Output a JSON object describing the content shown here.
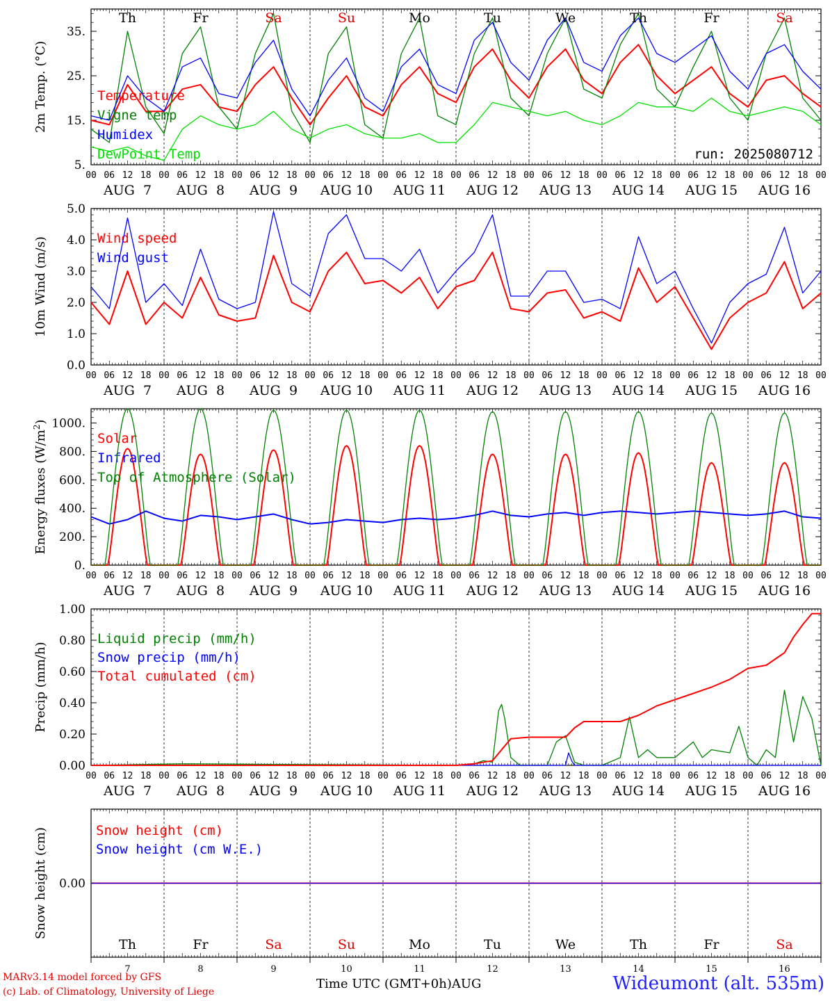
{
  "footer": {
    "model": "MARv3.14 model forced by GFS",
    "copyright": "(c) Lab. of Climatology, University of Liege",
    "xlabel": "Time UTC (GMT+0h)",
    "month": "AUG",
    "station": "Wideumont (alt. 535m)"
  },
  "run_label": "run: 2025080712",
  "colors": {
    "red": "#ff0000",
    "green": "#008000",
    "blue": "#0000ff",
    "lightgreen": "#00e000",
    "magenta": "#e000e0"
  },
  "days": [
    {
      "dow": "Th",
      "date": "7",
      "weekend": false
    },
    {
      "dow": "Fr",
      "date": "8",
      "weekend": false
    },
    {
      "dow": "Sa",
      "date": "9",
      "weekend": true
    },
    {
      "dow": "Su",
      "date": "10",
      "weekend": true
    },
    {
      "dow": "Mo",
      "date": "11",
      "weekend": false
    },
    {
      "dow": "Tu",
      "date": "12",
      "weekend": false
    },
    {
      "dow": "We",
      "date": "13",
      "weekend": false
    },
    {
      "dow": "Th",
      "date": "14",
      "weekend": false
    },
    {
      "dow": "Fr",
      "date": "15",
      "weekend": false
    },
    {
      "dow": "Sa",
      "date": "16",
      "weekend": true
    }
  ],
  "hour_ticks": [
    "00",
    "06",
    "12",
    "18"
  ],
  "date_labels": [
    "AUG  7",
    "AUG  8",
    "AUG  9",
    "AUG 10",
    "AUG 11",
    "AUG 12",
    "AUG 13",
    "AUG 14",
    "AUG 15",
    "AUG 16"
  ],
  "chart_data": [
    {
      "type": "line",
      "id": "temp",
      "ylabel": "2m Temp. (°C)",
      "ylim": [
        5,
        40
      ],
      "yticks": [
        5,
        15,
        25,
        35
      ],
      "ytick_labels": [
        "5.",
        "15.",
        "25.",
        "35."
      ],
      "x_unit": "hours since AUG 7 00 UTC",
      "series": [
        {
          "name": "Temperature",
          "color": "red",
          "x": [
            0,
            6,
            12,
            18,
            24,
            30,
            36,
            42,
            48,
            54,
            60,
            66,
            72,
            78,
            84,
            90,
            96,
            102,
            108,
            114,
            120,
            126,
            132,
            138,
            144,
            150,
            156,
            162,
            168,
            174,
            180,
            186,
            192,
            198,
            204,
            210,
            216,
            222,
            228,
            234,
            240
          ],
          "values": [
            15,
            14,
            23,
            17,
            17,
            22,
            23,
            18,
            17,
            23,
            27,
            20,
            14,
            20,
            25,
            18,
            16,
            23,
            27,
            21,
            19,
            27,
            31,
            24,
            20,
            27,
            31,
            24,
            21,
            28,
            32,
            25,
            21,
            24,
            27,
            21,
            18,
            24,
            25,
            21,
            18
          ]
        },
        {
          "name": "Vigne temp",
          "color": "green",
          "x": [
            0,
            6,
            12,
            18,
            24,
            30,
            36,
            42,
            48,
            54,
            60,
            66,
            72,
            78,
            84,
            90,
            96,
            102,
            108,
            114,
            120,
            126,
            132,
            138,
            144,
            150,
            156,
            162,
            168,
            174,
            180,
            186,
            192,
            198,
            204,
            210,
            216,
            222,
            228,
            234,
            240
          ],
          "values": [
            13,
            10,
            35,
            18,
            12,
            30,
            36,
            18,
            13,
            30,
            39,
            17,
            10,
            30,
            36,
            14,
            11,
            30,
            38,
            16,
            14,
            30,
            38,
            20,
            16,
            30,
            38,
            22,
            20,
            32,
            39,
            22,
            18,
            27,
            35,
            20,
            15,
            30,
            38,
            20,
            15
          ]
        },
        {
          "name": "Humidex",
          "color": "blue",
          "x": [
            0,
            6,
            12,
            18,
            24,
            30,
            36,
            42,
            48,
            54,
            60,
            66,
            72,
            78,
            84,
            90,
            96,
            102,
            108,
            114,
            120,
            126,
            132,
            138,
            144,
            150,
            156,
            162,
            168,
            174,
            180,
            186,
            192,
            198,
            204,
            210,
            216,
            222,
            228,
            234,
            240
          ],
          "values": [
            16,
            15,
            25,
            20,
            17,
            27,
            29,
            21,
            20,
            28,
            33,
            22,
            16,
            24,
            29,
            20,
            17,
            27,
            31,
            23,
            21,
            33,
            37,
            28,
            24,
            33,
            38,
            28,
            26,
            34,
            38,
            30,
            28,
            31,
            34,
            26,
            22,
            30,
            32,
            26,
            22
          ]
        },
        {
          "name": "DewPoint Temp",
          "color": "lightgreen",
          "x": [
            0,
            6,
            12,
            18,
            24,
            30,
            36,
            42,
            48,
            54,
            60,
            66,
            72,
            78,
            84,
            90,
            96,
            102,
            108,
            114,
            120,
            126,
            132,
            138,
            144,
            150,
            156,
            162,
            168,
            174,
            180,
            186,
            192,
            198,
            204,
            210,
            216,
            222,
            228,
            234,
            240
          ],
          "values": [
            9,
            8,
            9,
            7,
            6,
            13,
            16,
            14,
            13,
            14,
            17,
            13,
            11,
            13,
            14,
            12,
            11,
            11,
            12,
            10,
            10,
            14,
            19,
            18,
            17,
            16,
            17,
            15,
            14,
            16,
            19,
            18,
            18,
            17,
            20,
            17,
            16,
            17,
            18,
            17,
            14
          ]
        }
      ]
    },
    {
      "type": "line",
      "id": "wind",
      "ylabel": "10m Wind (m/s)",
      "ylim": [
        0,
        5
      ],
      "yticks": [
        0,
        1,
        2,
        3,
        4,
        5
      ],
      "ytick_labels": [
        "0.0",
        "1.0",
        "2.0",
        "3.0",
        "4.0",
        "5.0"
      ],
      "x_unit": "hours since AUG 7 00 UTC",
      "series": [
        {
          "name": "Wind speed",
          "color": "red",
          "x": [
            0,
            6,
            12,
            18,
            24,
            30,
            36,
            42,
            48,
            54,
            60,
            66,
            72,
            78,
            84,
            90,
            96,
            102,
            108,
            114,
            120,
            126,
            132,
            138,
            144,
            150,
            156,
            162,
            168,
            174,
            180,
            186,
            192,
            198,
            204,
            210,
            216,
            222,
            228,
            234,
            240
          ],
          "values": [
            2.0,
            1.3,
            3.0,
            1.3,
            2.0,
            1.5,
            2.8,
            1.6,
            1.4,
            1.5,
            3.5,
            2.0,
            1.7,
            3.0,
            3.6,
            2.6,
            2.7,
            2.3,
            2.8,
            1.8,
            2.5,
            2.7,
            3.6,
            1.8,
            1.7,
            2.3,
            2.4,
            1.5,
            1.7,
            1.4,
            3.1,
            2.0,
            2.5,
            1.5,
            0.5,
            1.5,
            2.0,
            2.3,
            3.3,
            1.8,
            2.3
          ]
        },
        {
          "name": "Wind gust",
          "color": "blue",
          "x": [
            0,
            6,
            12,
            18,
            24,
            30,
            36,
            42,
            48,
            54,
            60,
            66,
            72,
            78,
            84,
            90,
            96,
            102,
            108,
            114,
            120,
            126,
            132,
            138,
            144,
            150,
            156,
            162,
            168,
            174,
            180,
            186,
            192,
            198,
            204,
            210,
            216,
            222,
            228,
            234,
            240
          ],
          "values": [
            2.5,
            1.8,
            4.7,
            2.0,
            2.6,
            1.9,
            3.7,
            2.1,
            1.8,
            2.0,
            4.9,
            2.6,
            2.2,
            4.2,
            4.8,
            3.4,
            3.4,
            3.0,
            3.7,
            2.3,
            3.0,
            3.6,
            4.8,
            2.2,
            2.2,
            3.0,
            3.0,
            2.0,
            2.1,
            1.8,
            4.1,
            2.6,
            3.0,
            1.8,
            0.7,
            2.0,
            2.6,
            2.9,
            4.4,
            2.3,
            3.0
          ]
        }
      ]
    },
    {
      "type": "line",
      "id": "energy",
      "ylabel": "Energy fluxes (W/m2)",
      "ylim": [
        0,
        1100
      ],
      "yticks": [
        0,
        200,
        400,
        600,
        800,
        1000
      ],
      "ytick_labels": [
        "0.",
        "200.",
        "400.",
        "600.",
        "800.",
        "1000."
      ],
      "x_unit": "hours since AUG 7 00 UTC",
      "peak_hour": 12,
      "series": [
        {
          "name": "Solar",
          "color": "red",
          "daily_peaks": [
            820,
            780,
            810,
            840,
            840,
            780,
            780,
            790,
            720,
            720
          ]
        },
        {
          "name": "Infrared",
          "color": "blue",
          "x": [
            0,
            6,
            12,
            18,
            24,
            30,
            36,
            42,
            48,
            54,
            60,
            66,
            72,
            78,
            84,
            90,
            96,
            102,
            108,
            114,
            120,
            126,
            132,
            138,
            144,
            150,
            156,
            162,
            168,
            174,
            180,
            186,
            192,
            198,
            204,
            210,
            216,
            222,
            228,
            234,
            240
          ],
          "values": [
            340,
            290,
            320,
            380,
            330,
            310,
            350,
            340,
            320,
            340,
            360,
            320,
            290,
            300,
            320,
            310,
            300,
            320,
            330,
            320,
            330,
            350,
            380,
            350,
            340,
            360,
            370,
            350,
            370,
            380,
            370,
            360,
            370,
            380,
            370,
            360,
            350,
            360,
            380,
            340,
            330
          ]
        },
        {
          "name": "Top of Atmosphere (Solar)",
          "color": "green",
          "daily_peaks": [
            1100,
            1100,
            1090,
            1090,
            1090,
            1080,
            1080,
            1080,
            1070,
            1070
          ]
        }
      ]
    },
    {
      "type": "line",
      "id": "precip",
      "ylabel": "Precip (mm/h)",
      "ylim": [
        0,
        1
      ],
      "yticks": [
        0,
        0.2,
        0.4,
        0.6,
        0.8,
        1.0
      ],
      "ytick_labels": [
        "0.00",
        "0.20",
        "0.40",
        "0.60",
        "0.80",
        "1.00"
      ],
      "x_unit": "hours since AUG 7 00 UTC",
      "series": [
        {
          "name": "Liquid precip (mm/h)",
          "color": "green",
          "x": [
            0,
            30,
            120,
            126,
            129,
            132,
            134,
            135,
            136,
            138,
            141,
            144,
            150,
            153,
            156,
            159,
            162,
            168,
            174,
            177,
            180,
            183,
            186,
            192,
            198,
            201,
            204,
            210,
            213,
            216,
            219,
            222,
            225,
            228,
            231,
            234,
            237,
            240
          ],
          "values": [
            0,
            0.01,
            0,
            0.01,
            0.03,
            0.02,
            0.35,
            0.39,
            0.3,
            0.05,
            0,
            0,
            0,
            0.15,
            0.19,
            0.02,
            0,
            0,
            0.05,
            0.31,
            0.05,
            0.1,
            0.05,
            0.05,
            0.15,
            0.05,
            0.1,
            0.08,
            0.25,
            0.05,
            0,
            0.1,
            0.05,
            0.48,
            0.15,
            0.44,
            0.3,
            0
          ]
        },
        {
          "name": "Snow precip (mm/h)",
          "color": "blue",
          "x": [
            0,
            156,
            157,
            158,
            159,
            240
          ],
          "values": [
            0,
            0,
            0.08,
            0.03,
            0,
            0
          ]
        },
        {
          "name": "Total cumulated (cm)",
          "color": "red",
          "x": [
            0,
            120,
            126,
            132,
            135,
            138,
            144,
            150,
            156,
            159,
            162,
            168,
            174,
            180,
            186,
            192,
            198,
            204,
            210,
            216,
            222,
            228,
            231,
            234,
            237,
            240
          ],
          "values": [
            0,
            0,
            0.01,
            0.03,
            0.1,
            0.17,
            0.18,
            0.18,
            0.18,
            0.24,
            0.28,
            0.28,
            0.28,
            0.32,
            0.38,
            0.42,
            0.46,
            0.5,
            0.55,
            0.62,
            0.64,
            0.72,
            0.82,
            0.9,
            0.97,
            0.97
          ]
        }
      ]
    },
    {
      "type": "line",
      "id": "snow",
      "ylabel": "Snow height (cm)",
      "ylim": [
        -1,
        1
      ],
      "yticks": [
        0
      ],
      "ytick_labels": [
        "0.00"
      ],
      "x_unit": "hours since AUG 7 00 UTC",
      "series": [
        {
          "name": "Snow height (cm)",
          "color": "red",
          "x": [
            0,
            240
          ],
          "values": [
            0,
            0
          ]
        },
        {
          "name": "Snow height (cm W.E.)",
          "color": "blue",
          "x": [
            0,
            240
          ],
          "values": [
            0,
            0
          ]
        }
      ]
    }
  ]
}
